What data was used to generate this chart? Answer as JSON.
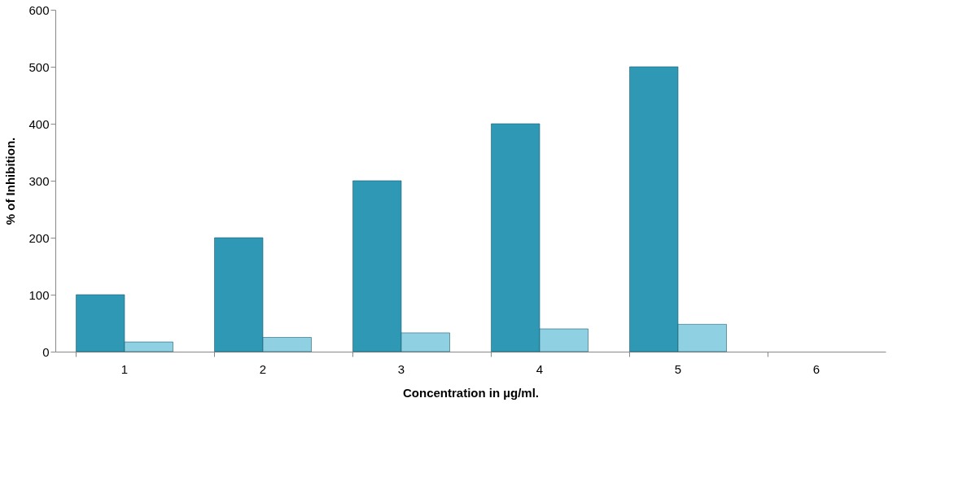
{
  "chart_data": {
    "type": "bar",
    "xlabel": "Concentration in µg/ml.",
    "ylabel": "% of Inhibition.",
    "categories": [
      "1",
      "2",
      "3",
      "4",
      "5",
      "6"
    ],
    "series": [
      {
        "color": "#2e98b5",
        "values": [
          100,
          200,
          300,
          400,
          500,
          null
        ]
      },
      {
        "color": "#8fd0e3",
        "values": [
          17,
          25,
          33,
          40,
          48,
          null
        ]
      }
    ],
    "ylim": [
      0,
      600
    ],
    "yticks": [
      0,
      100,
      200,
      300,
      400,
      500,
      600
    ],
    "grid": false,
    "legend": false
  }
}
